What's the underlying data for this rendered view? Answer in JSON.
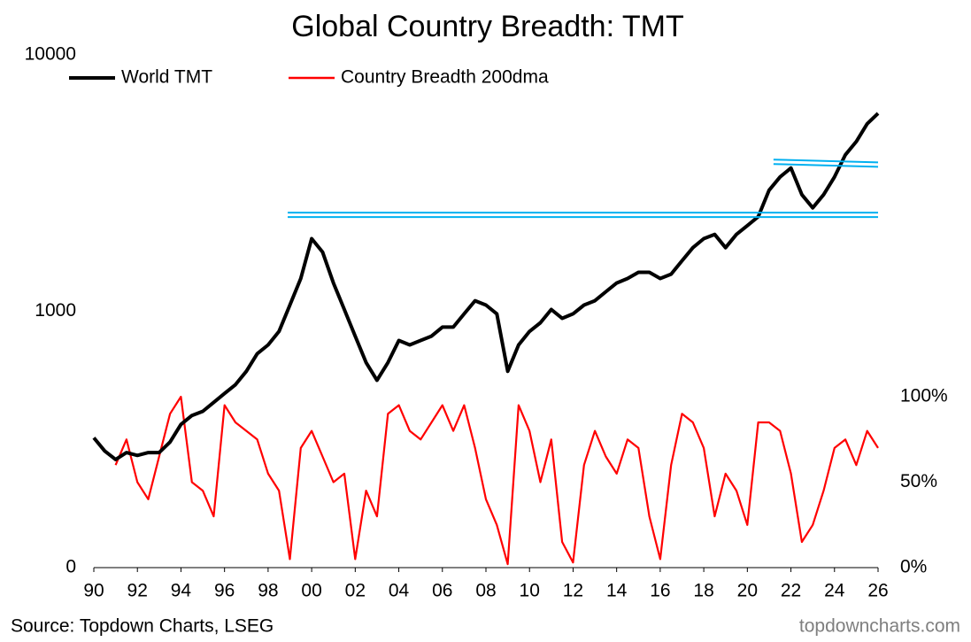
{
  "chart_data": {
    "type": "line",
    "title": "Global Country Breadth: TMT",
    "source": "Source: Topdown Charts, LSEG",
    "watermark": "topdowncharts.com",
    "ylog": true,
    "legend": "top-left",
    "x": [
      1990,
      1990.5,
      1991,
      1991.5,
      1992,
      1992.5,
      1993,
      1993.5,
      1994,
      1994.5,
      1995,
      1995.5,
      1996,
      1996.5,
      1997,
      1997.5,
      1998,
      1998.5,
      1999,
      1999.5,
      2000,
      2000.5,
      2001,
      2001.5,
      2002,
      2002.5,
      2003,
      2003.5,
      2004,
      2004.5,
      2005,
      2005.5,
      2006,
      2006.5,
      2007,
      2007.5,
      2008,
      2008.5,
      2009,
      2009.5,
      2010,
      2010.5,
      2011,
      2011.5,
      2012,
      2012.5,
      2013,
      2013.5,
      2014,
      2014.5,
      2015,
      2015.5,
      2016,
      2016.5,
      2017,
      2017.5,
      2018,
      2018.5,
      2019,
      2019.5,
      2020,
      2020.5,
      2021,
      2021.5,
      2022,
      2022.5,
      2023,
      2023.5,
      2024,
      2024.5,
      2025,
      2025.5,
      2026
    ],
    "series": [
      {
        "name": "World TMT",
        "color": "#000000",
        "values": [
          321,
          285,
          264,
          281,
          274,
          281,
          281,
          309,
          362,
          392,
          407,
          441,
          478,
          517,
          583,
          683,
          739,
          834,
          1057,
          1342,
          1919,
          1702,
          1289,
          1016,
          800,
          631,
          538,
          631,
          769,
          739,
          769,
          800,
          867,
          867,
          977,
          1099,
          1057,
          977,
          583,
          739,
          834,
          902,
          1016,
          938,
          977,
          1057,
          1099,
          1191,
          1289,
          1342,
          1419,
          1419,
          1342,
          1396,
          1574,
          1770,
          1919,
          1995,
          1770,
          1995,
          2158,
          2339,
          2965,
          3342,
          3622,
          2851,
          2531,
          2851,
          3342,
          4077,
          4592,
          5386,
          5918
        ]
      },
      {
        "name": "Country Breadth 200dma",
        "color": "#ff0000",
        "axis": "y2",
        "values": [
          null,
          null,
          60,
          75,
          50,
          40,
          65,
          90,
          100,
          50,
          45,
          30,
          95,
          85,
          80,
          75,
          55,
          45,
          5,
          70,
          80,
          65,
          50,
          55,
          5,
          45,
          30,
          90,
          95,
          80,
          75,
          85,
          95,
          80,
          95,
          70,
          40,
          25,
          2,
          95,
          80,
          50,
          75,
          15,
          3,
          60,
          80,
          65,
          55,
          75,
          70,
          30,
          5,
          60,
          90,
          85,
          70,
          30,
          55,
          45,
          25,
          85,
          85,
          80,
          55,
          15,
          25,
          45,
          70,
          75,
          60,
          80,
          70
        ]
      }
    ],
    "reference_lines": {
      "color": "#00b0f0",
      "lines": [
        {
          "x": [
            1998.9,
            2026
          ],
          "y": [
            2377,
            2377
          ]
        },
        {
          "x": [
            2021.2,
            2026
          ],
          "y": [
            3828,
            3733
          ]
        }
      ]
    },
    "xlim": [
      1990,
      2026
    ],
    "xticks": [
      {
        "value": 1990,
        "label": "90"
      },
      {
        "value": 1992,
        "label": "92"
      },
      {
        "value": 1994,
        "label": "94"
      },
      {
        "value": 1996,
        "label": "96"
      },
      {
        "value": 1998,
        "label": "98"
      },
      {
        "value": 2000,
        "label": "00"
      },
      {
        "value": 2002,
        "label": "02"
      },
      {
        "value": 2004,
        "label": "04"
      },
      {
        "value": 2006,
        "label": "06"
      },
      {
        "value": 2008,
        "label": "08"
      },
      {
        "value": 2010,
        "label": "10"
      },
      {
        "value": 2012,
        "label": "12"
      },
      {
        "value": 2014,
        "label": "14"
      },
      {
        "value": 2016,
        "label": "16"
      },
      {
        "value": 2018,
        "label": "18"
      },
      {
        "value": 2020,
        "label": "20"
      },
      {
        "value": 2022,
        "label": "22"
      },
      {
        "value": 2024,
        "label": "24"
      },
      {
        "value": 2026,
        "label": "26"
      }
    ],
    "ylim": [
      100,
      10000
    ],
    "yticks": [
      {
        "value": 100,
        "label": "0"
      },
      1000,
      10000
    ],
    "y2lim": [
      0,
      300
    ],
    "y2ticks": [
      {
        "value": 0,
        "label": "0%"
      },
      {
        "value": 50,
        "label": "50%"
      },
      {
        "value": 100,
        "label": "100%"
      }
    ]
  }
}
